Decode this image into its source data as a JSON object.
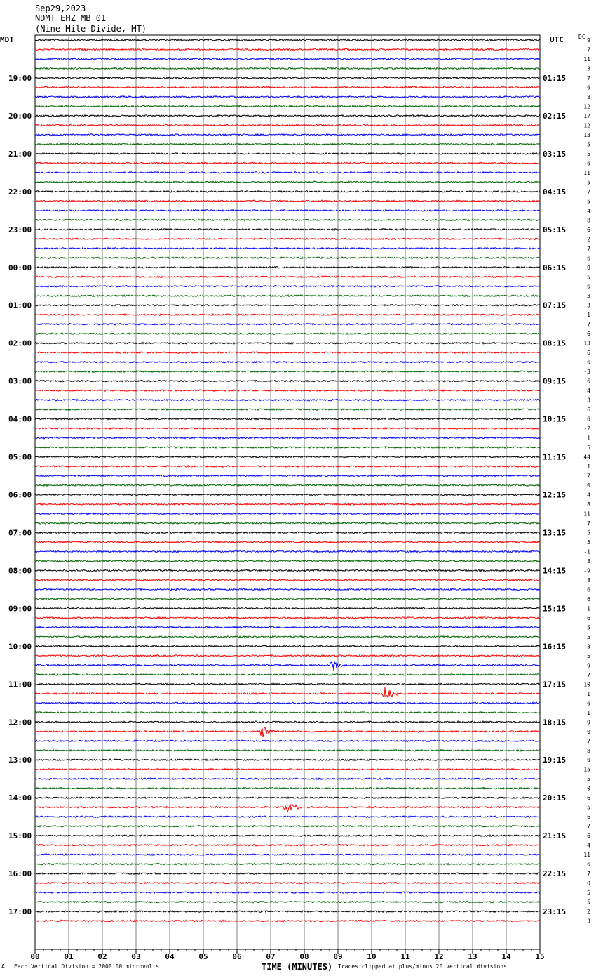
{
  "header": {
    "date": "Sep29,2023",
    "station": "NDMT EHZ MB 01",
    "location": "(Nine Mile Divide, MT)"
  },
  "left_tz": "MDT",
  "right_tz": "UTC",
  "dc_header": "DC",
  "footer": {
    "mark": "A",
    "scale": "Each Vertical Division = 2000.00 microvolts",
    "clip": "Traces clipped at plus/minus 20 vertical divisions"
  },
  "colors": [
    "#000000",
    "#ff0000",
    "#0000ff",
    "#006400"
  ],
  "chart_data": {
    "type": "line",
    "xlabel": "TIME (MINUTES)",
    "x_ticks": [
      "00",
      "01",
      "02",
      "03",
      "04",
      "05",
      "06",
      "07",
      "08",
      "09",
      "10",
      "11",
      "12",
      "13",
      "14",
      "15"
    ],
    "xlim": [
      0,
      15
    ],
    "traces_per_hour": 4,
    "left_hour_labels": [
      "19:00",
      "20:00",
      "21:00",
      "22:00",
      "23:00",
      "00:00",
      "01:00",
      "02:00",
      "03:00",
      "04:00",
      "05:00",
      "06:00",
      "07:00",
      "08:00",
      "09:00",
      "10:00",
      "11:00",
      "12:00",
      "13:00",
      "14:00",
      "15:00",
      "16:00",
      "17:00"
    ],
    "right_hour_labels": [
      "01:15",
      "02:15",
      "03:15",
      "04:15",
      "05:15",
      "06:15",
      "07:15",
      "08:15",
      "09:15",
      "10:15",
      "11:15",
      "12:15",
      "13:15",
      "14:15",
      "15:15",
      "16:15",
      "17:15",
      "18:15",
      "19:15",
      "20:15",
      "21:15",
      "22:15",
      "23:15"
    ],
    "dc_offsets": [
      "9",
      "7",
      "11",
      "3",
      "7",
      "6",
      "8",
      "12",
      "17",
      "12",
      "13",
      "5",
      "5",
      "6",
      "11",
      "5",
      "7",
      "5",
      "4",
      "8",
      "6",
      "2",
      "7",
      "6",
      "9",
      "5",
      "6",
      "3",
      "3",
      "1",
      "7",
      "6",
      "13",
      "6",
      "6",
      "-3",
      "6",
      "4",
      "3",
      "6",
      "6",
      "-2",
      "1",
      "5",
      "44",
      "1",
      "7",
      "0",
      "4",
      "8",
      "11",
      "7",
      "5",
      "5",
      "-1",
      "8",
      "-9",
      "8",
      "6",
      "6",
      "1",
      "6",
      "5",
      "5",
      "3",
      "5",
      "9",
      "7",
      "10",
      "-1",
      "6",
      "1",
      "9",
      "0",
      "7",
      "8",
      "0",
      "15",
      "5",
      "0",
      "6",
      "5",
      "6",
      "7",
      "6",
      "4",
      "11",
      "6",
      "7",
      "0",
      "5",
      "5",
      "2",
      "3"
    ],
    "events": [
      {
        "trace": 66,
        "minute": 8.85,
        "amplitude": 8
      },
      {
        "trace": 69,
        "minute": 10.4,
        "amplitude": 10
      },
      {
        "trace": 73,
        "minute": 6.7,
        "amplitude": 12
      },
      {
        "trace": 81,
        "minute": 7.5,
        "amplitude": 9
      }
    ]
  }
}
